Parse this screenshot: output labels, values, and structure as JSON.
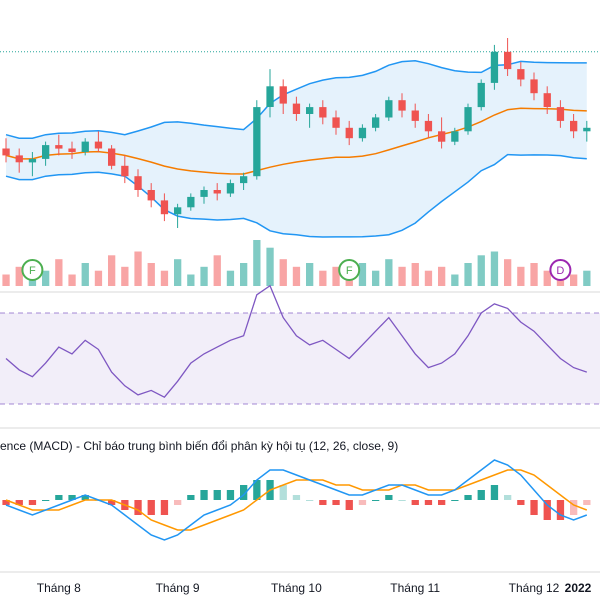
{
  "chart_data": [
    {
      "type": "candlestick",
      "panel": "price",
      "overlays": [
        "bollinger-upper",
        "bollinger-basis",
        "bollinger-lower"
      ],
      "reference_line": "dotted",
      "ohlc": [
        [
          15.6,
          15.9,
          15.2,
          15.4
        ],
        [
          15.4,
          15.6,
          14.9,
          15.2
        ],
        [
          15.2,
          15.5,
          14.8,
          15.3
        ],
        [
          15.3,
          15.8,
          15.1,
          15.7
        ],
        [
          15.7,
          16.0,
          15.4,
          15.6
        ],
        [
          15.6,
          15.8,
          15.3,
          15.5
        ],
        [
          15.5,
          15.9,
          15.4,
          15.8
        ],
        [
          15.8,
          16.1,
          15.5,
          15.6
        ],
        [
          15.6,
          15.7,
          15.0,
          15.1
        ],
        [
          15.1,
          15.4,
          14.6,
          14.8
        ],
        [
          14.8,
          15.0,
          14.2,
          14.4
        ],
        [
          14.4,
          14.6,
          13.9,
          14.1
        ],
        [
          14.1,
          14.3,
          13.5,
          13.7
        ],
        [
          13.7,
          14.0,
          13.3,
          13.9
        ],
        [
          13.9,
          14.3,
          13.8,
          14.2
        ],
        [
          14.2,
          14.5,
          14.0,
          14.4
        ],
        [
          14.4,
          14.6,
          14.1,
          14.3
        ],
        [
          14.3,
          14.7,
          14.2,
          14.6
        ],
        [
          14.6,
          14.9,
          14.4,
          14.8
        ],
        [
          14.8,
          17.0,
          14.7,
          16.8
        ],
        [
          16.8,
          17.9,
          16.5,
          17.4
        ],
        [
          17.4,
          17.6,
          16.6,
          16.9
        ],
        [
          16.9,
          17.1,
          16.4,
          16.6
        ],
        [
          16.6,
          16.9,
          16.2,
          16.8
        ],
        [
          16.8,
          17.0,
          16.3,
          16.5
        ],
        [
          16.5,
          16.7,
          16.0,
          16.2
        ],
        [
          16.2,
          16.4,
          15.7,
          15.9
        ],
        [
          15.9,
          16.3,
          15.8,
          16.2
        ],
        [
          16.2,
          16.6,
          16.1,
          16.5
        ],
        [
          16.5,
          17.1,
          16.4,
          17.0
        ],
        [
          17.0,
          17.2,
          16.5,
          16.7
        ],
        [
          16.7,
          16.9,
          16.2,
          16.4
        ],
        [
          16.4,
          16.6,
          15.9,
          16.1
        ],
        [
          16.1,
          16.5,
          15.6,
          15.8
        ],
        [
          15.8,
          16.2,
          15.7,
          16.1
        ],
        [
          16.1,
          16.9,
          16.0,
          16.8
        ],
        [
          16.8,
          17.6,
          16.7,
          17.5
        ],
        [
          17.5,
          18.6,
          17.3,
          18.4
        ],
        [
          18.4,
          18.8,
          17.7,
          17.9
        ],
        [
          17.9,
          18.1,
          17.4,
          17.6
        ],
        [
          17.6,
          17.8,
          17.0,
          17.2
        ],
        [
          17.2,
          17.4,
          16.6,
          16.8
        ],
        [
          16.8,
          17.0,
          16.2,
          16.4
        ],
        [
          16.4,
          16.6,
          15.9,
          16.1
        ],
        [
          16.1,
          16.4,
          15.8,
          16.2
        ]
      ]
    },
    {
      "type": "bar",
      "panel": "volume",
      "values": [
        3,
        5,
        2,
        4,
        7,
        3,
        6,
        4,
        8,
        5,
        9,
        6,
        4,
        7,
        3,
        5,
        8,
        4,
        6,
        12,
        10,
        7,
        5,
        6,
        4,
        5,
        3,
        6,
        4,
        7,
        5,
        6,
        4,
        5,
        3,
        6,
        8,
        9,
        7,
        5,
        6,
        4,
        5,
        3,
        4
      ],
      "markers": [
        {
          "label": "F",
          "index": 2,
          "color": "#4caf50"
        },
        {
          "label": "F",
          "index": 26,
          "color": "#4caf50"
        },
        {
          "label": "D",
          "index": 42,
          "color": "#9c27b0"
        }
      ]
    },
    {
      "type": "line",
      "panel": "oscillator",
      "band": "dashed",
      "values": [
        50,
        45,
        42,
        48,
        55,
        52,
        58,
        54,
        44,
        38,
        34,
        36,
        33,
        40,
        48,
        52,
        55,
        58,
        60,
        78,
        82,
        68,
        60,
        56,
        58,
        54,
        50,
        56,
        62,
        68,
        60,
        52,
        46,
        48,
        52,
        60,
        70,
        74,
        72,
        66,
        62,
        56,
        50,
        46,
        44
      ]
    },
    {
      "type": "line",
      "panel": "macd",
      "title": "ence (MACD) - Chỉ báo trung bình biến đổi phân kỳ hội tụ (12, 26, close, 9)",
      "series": [
        {
          "color": "#2196f3",
          "values": [
            -0.1,
            -0.2,
            -0.3,
            -0.2,
            -0.1,
            0.0,
            0.1,
            0.0,
            -0.1,
            -0.3,
            -0.5,
            -0.7,
            -0.8,
            -0.7,
            -0.5,
            -0.3,
            -0.2,
            -0.1,
            0.1,
            0.4,
            0.6,
            0.6,
            0.5,
            0.4,
            0.3,
            0.2,
            0.1,
            0.1,
            0.2,
            0.3,
            0.3,
            0.2,
            0.1,
            0.1,
            0.2,
            0.4,
            0.6,
            0.8,
            0.7,
            0.5,
            0.2,
            -0.1,
            -0.3,
            -0.4,
            -0.3
          ]
        },
        {
          "color": "#ff9800",
          "values": [
            0.0,
            -0.1,
            -0.2,
            -0.2,
            -0.2,
            -0.1,
            0.0,
            0.0,
            0.0,
            -0.1,
            -0.2,
            -0.4,
            -0.5,
            -0.6,
            -0.6,
            -0.5,
            -0.4,
            -0.3,
            -0.2,
            0.0,
            0.2,
            0.3,
            0.4,
            0.4,
            0.4,
            0.3,
            0.3,
            0.2,
            0.2,
            0.2,
            0.3,
            0.3,
            0.2,
            0.2,
            0.2,
            0.3,
            0.4,
            0.5,
            0.6,
            0.6,
            0.5,
            0.3,
            0.1,
            -0.1,
            -0.2
          ]
        }
      ],
      "histogram": [
        -0.1,
        -0.1,
        -0.1,
        0.0,
        0.1,
        0.1,
        0.1,
        0.0,
        -0.1,
        -0.2,
        -0.3,
        -0.3,
        -0.3,
        -0.1,
        0.1,
        0.2,
        0.2,
        0.2,
        0.3,
        0.4,
        0.4,
        0.3,
        0.1,
        0.0,
        -0.1,
        -0.1,
        -0.2,
        -0.1,
        0.0,
        0.1,
        0.0,
        -0.1,
        -0.1,
        -0.1,
        0.0,
        0.1,
        0.2,
        0.3,
        0.1,
        -0.1,
        -0.3,
        -0.4,
        -0.4,
        -0.3,
        -0.1
      ]
    },
    {
      "type": "axis",
      "panel": "time",
      "ticks": [
        {
          "label": "Tháng 8",
          "index": 4
        },
        {
          "label": "Tháng 9",
          "index": 13
        },
        {
          "label": "Tháng 10",
          "index": 22
        },
        {
          "label": "Tháng 11",
          "index": 31
        },
        {
          "label": "Tháng 12",
          "index": 40
        },
        {
          "label": "2022",
          "index": 50,
          "bold": true
        }
      ]
    }
  ],
  "colors": {
    "up": "#26a69a",
    "down": "#ef5350",
    "band_line": "#2196f3",
    "band_fill": "#dcedfb",
    "basis": "#f57c00",
    "reference": "#26a69a",
    "volume_up": "#80cbc4",
    "volume_down": "#f8a5a5",
    "oscillator_line": "#7e57c2",
    "oscillator_fill": "#ede7f6",
    "oscillator_band": "#7e57c2",
    "macd_line": "#2196f3",
    "signal_line": "#ff9800",
    "hist_up_strong": "#26a69a",
    "hist_up_weak": "#b2dfdb",
    "hist_down_strong": "#ef5350",
    "hist_down_weak": "#f8bbbb",
    "separator": "#d8d8d8",
    "axis_text": "#131722"
  }
}
